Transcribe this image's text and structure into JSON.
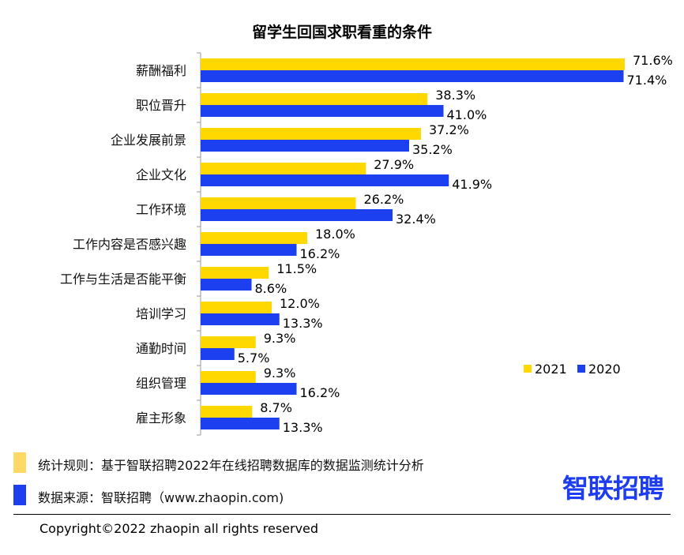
{
  "chart_data": {
    "type": "bar",
    "orientation": "horizontal",
    "title": "留学生回国求职看重的条件",
    "categories": [
      "薪酬福利",
      "职位晋升",
      "企业发展前景",
      "企业文化",
      "工作环境",
      "工作内容是否感兴趣",
      "工作与生活是否能平衡",
      "培训学习",
      "通勤时间",
      "组织管理",
      "雇主形象"
    ],
    "series": [
      {
        "name": "2021",
        "color": "#FFD800",
        "values": [
          71.6,
          38.3,
          37.2,
          27.9,
          26.2,
          18.0,
          11.5,
          12.0,
          9.3,
          9.3,
          8.7
        ]
      },
      {
        "name": "2020",
        "color": "#1C3FF0",
        "values": [
          71.4,
          41.0,
          35.2,
          41.9,
          32.4,
          16.2,
          8.6,
          13.3,
          5.7,
          16.2,
          13.3
        ]
      }
    ],
    "value_suffix": "%",
    "xlim": [
      0,
      75
    ],
    "legend": "right"
  },
  "notes": {
    "rule": "统计规则：基于智联招聘2022年在线招聘数据库的数据监测统计分析",
    "source": "数据来源：智联招聘（www.zhaopin.com)",
    "rule_color": "#FFD966",
    "source_color": "#1C3FF0"
  },
  "logo": "智联招聘",
  "copyright": "Copyright©2022 zhaopin all rights reserved"
}
